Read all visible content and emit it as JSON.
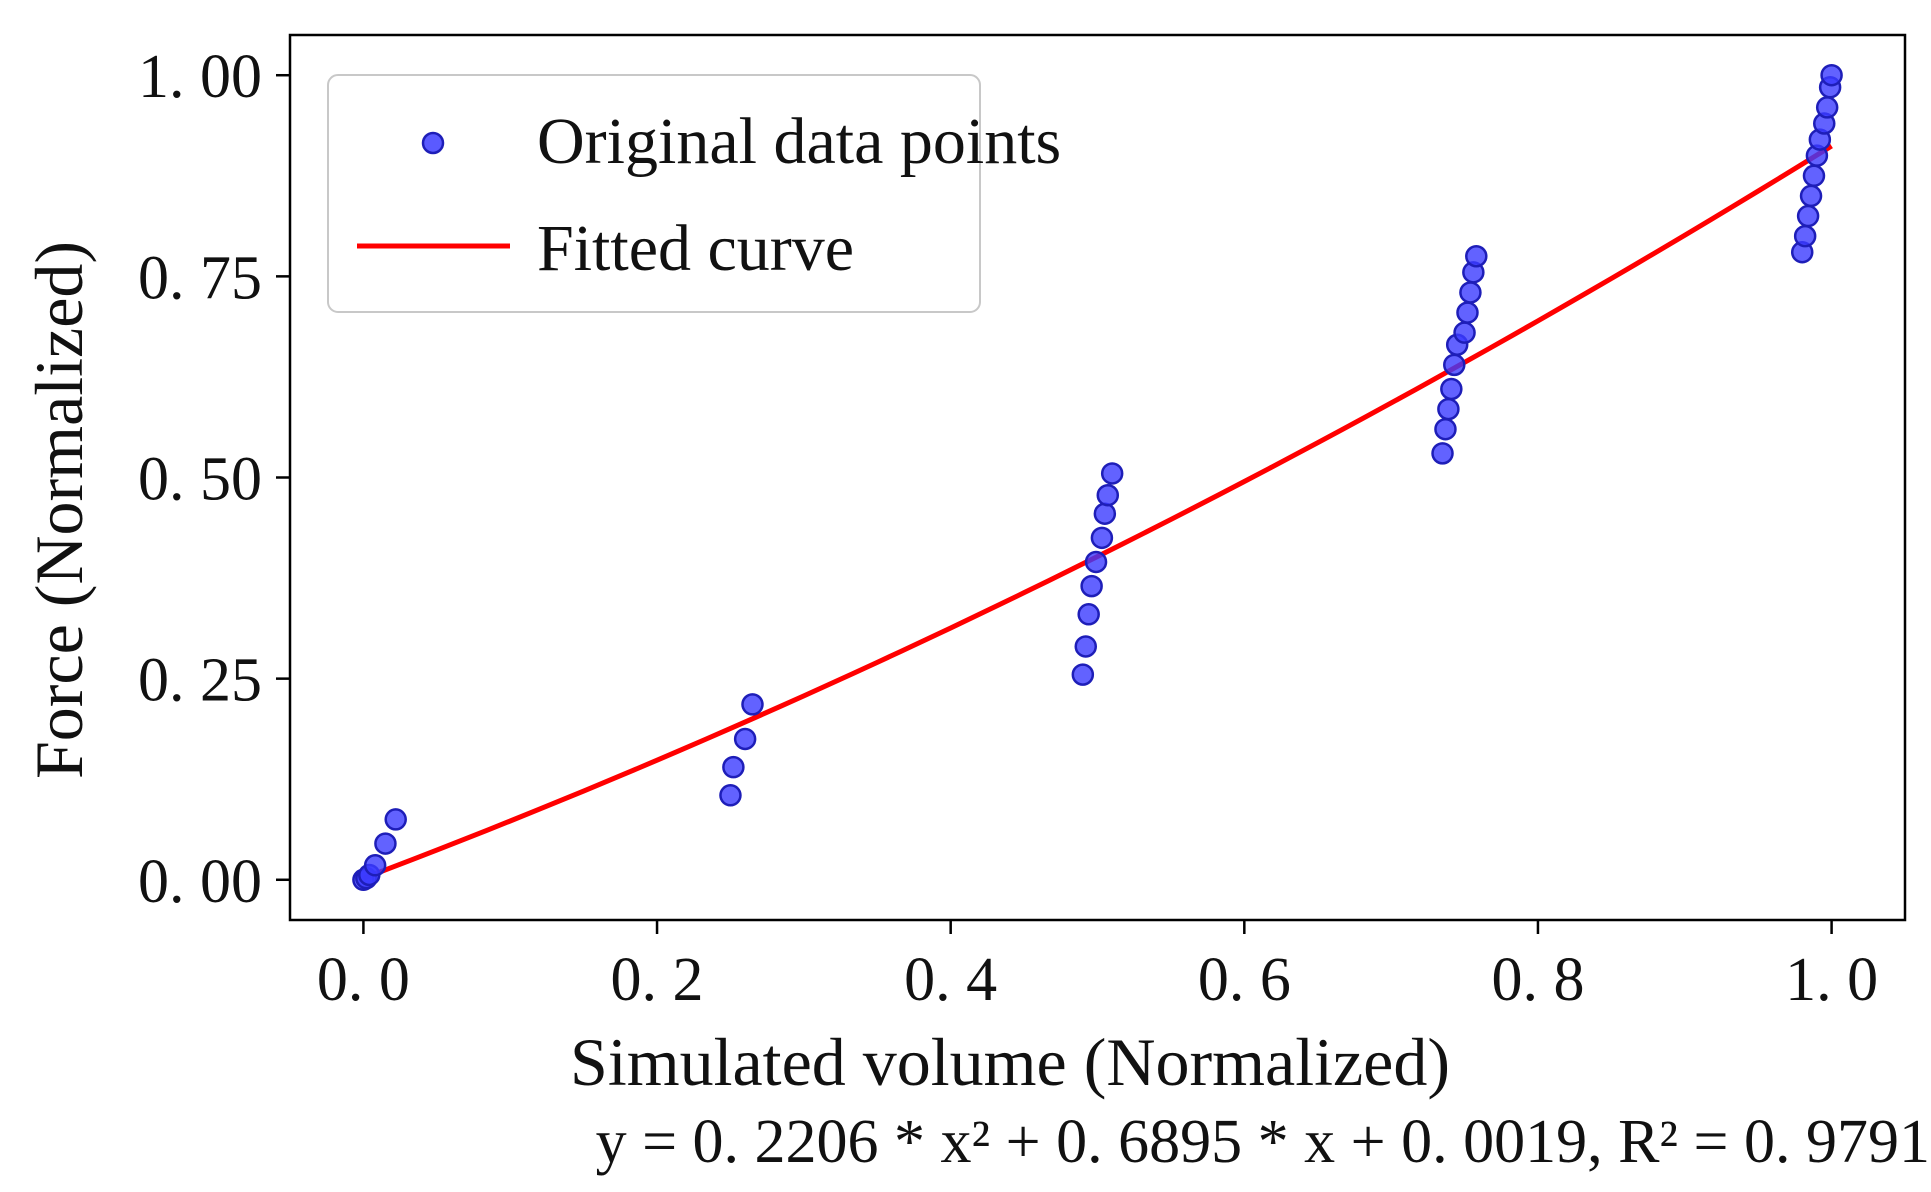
{
  "chart_data": {
    "type": "scatter",
    "xlabel": "Simulated volume (Normalized)",
    "ylabel": "Force (Normalized)",
    "xlim": [
      -0.05,
      1.05
    ],
    "ylim": [
      -0.05,
      1.05
    ],
    "x_ticks": [
      0.0,
      0.2,
      0.4,
      0.6,
      0.8,
      1.0
    ],
    "x_tick_labels": [
      "0. 0",
      "0. 2",
      "0. 4",
      "0. 6",
      "0. 8",
      "1. 0"
    ],
    "y_ticks": [
      0.0,
      0.25,
      0.5,
      0.75,
      1.0
    ],
    "y_tick_labels": [
      "0. 00",
      "0. 25",
      "0. 50",
      "0. 75",
      "1. 00"
    ],
    "legend": {
      "position": "top-left",
      "entries": [
        "Original data points",
        "Fitted curve"
      ]
    },
    "equation": "y =  0. 2206 *  x² + 0. 6895  *  x  + 0. 0019,   R² = 0. 9791",
    "colors": {
      "points": "#3b3bff",
      "points_edge": "#1e1eb8",
      "curve": "#ff0000"
    },
    "series": [
      {
        "name": "Original data points",
        "kind": "scatter",
        "points": [
          [
            0.0,
            0.0
          ],
          [
            0.002,
            0.002
          ],
          [
            0.004,
            0.006
          ],
          [
            0.008,
            0.018
          ],
          [
            0.015,
            0.045
          ],
          [
            0.022,
            0.075
          ],
          [
            0.25,
            0.105
          ],
          [
            0.252,
            0.14
          ],
          [
            0.26,
            0.175
          ],
          [
            0.265,
            0.218
          ],
          [
            0.49,
            0.255
          ],
          [
            0.492,
            0.29
          ],
          [
            0.494,
            0.33
          ],
          [
            0.496,
            0.365
          ],
          [
            0.499,
            0.395
          ],
          [
            0.503,
            0.425
          ],
          [
            0.505,
            0.455
          ],
          [
            0.507,
            0.478
          ],
          [
            0.51,
            0.505
          ],
          [
            0.735,
            0.53
          ],
          [
            0.737,
            0.56
          ],
          [
            0.739,
            0.585
          ],
          [
            0.741,
            0.61
          ],
          [
            0.743,
            0.64
          ],
          [
            0.745,
            0.665
          ],
          [
            0.75,
            0.68
          ],
          [
            0.752,
            0.705
          ],
          [
            0.754,
            0.73
          ],
          [
            0.756,
            0.755
          ],
          [
            0.758,
            0.775
          ],
          [
            0.98,
            0.78
          ],
          [
            0.982,
            0.8
          ],
          [
            0.984,
            0.825
          ],
          [
            0.986,
            0.85
          ],
          [
            0.988,
            0.875
          ],
          [
            0.99,
            0.9
          ],
          [
            0.992,
            0.92
          ],
          [
            0.995,
            0.94
          ],
          [
            0.997,
            0.96
          ],
          [
            0.999,
            0.985
          ],
          [
            1.0,
            1.0
          ]
        ]
      },
      {
        "name": "Fitted curve",
        "kind": "line",
        "formula": {
          "a": 0.2206,
          "b": 0.6895,
          "c": 0.0019
        },
        "x_range": [
          0.0,
          1.0
        ]
      }
    ]
  }
}
